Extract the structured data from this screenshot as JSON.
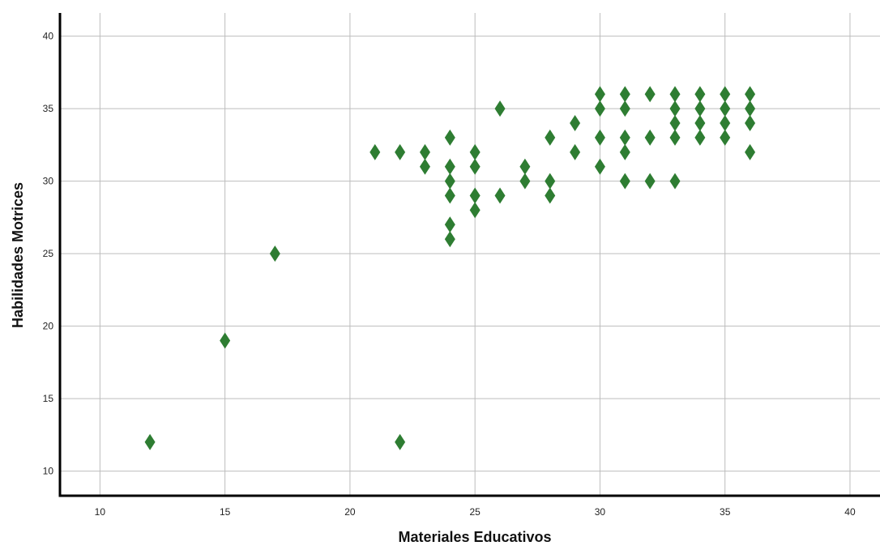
{
  "chart_data": {
    "type": "scatter",
    "title": "",
    "xlabel": "Materiales Educativos",
    "ylabel": "Habilidades Motrices",
    "xlim": [
      8.4,
      41.2
    ],
    "ylim": [
      8.3,
      41.6
    ],
    "xticks": [
      10,
      15,
      20,
      25,
      30,
      35,
      40
    ],
    "yticks": [
      10,
      15,
      20,
      25,
      30,
      35,
      40
    ],
    "grid": true,
    "marker": "diamond",
    "color": "#2e7d32",
    "points": [
      [
        12,
        12
      ],
      [
        15,
        19
      ],
      [
        17,
        25
      ],
      [
        21,
        32
      ],
      [
        22,
        32
      ],
      [
        22,
        12
      ],
      [
        23,
        32
      ],
      [
        23,
        31
      ],
      [
        24,
        33
      ],
      [
        24,
        31
      ],
      [
        24,
        30
      ],
      [
        24,
        29
      ],
      [
        24,
        27
      ],
      [
        24,
        26
      ],
      [
        25,
        32
      ],
      [
        25,
        31
      ],
      [
        25,
        29
      ],
      [
        25,
        28
      ],
      [
        26,
        35
      ],
      [
        26,
        29
      ],
      [
        27,
        31
      ],
      [
        27,
        30
      ],
      [
        28,
        33
      ],
      [
        28,
        30
      ],
      [
        28,
        29
      ],
      [
        29,
        34
      ],
      [
        29,
        32
      ],
      [
        30,
        36
      ],
      [
        30,
        35
      ],
      [
        30,
        33
      ],
      [
        30,
        31
      ],
      [
        31,
        36
      ],
      [
        31,
        35
      ],
      [
        31,
        33
      ],
      [
        31,
        32
      ],
      [
        31,
        30
      ],
      [
        32,
        36
      ],
      [
        32,
        33
      ],
      [
        32,
        30
      ],
      [
        33,
        36
      ],
      [
        33,
        35
      ],
      [
        33,
        34
      ],
      [
        33,
        33
      ],
      [
        33,
        30
      ],
      [
        34,
        36
      ],
      [
        34,
        35
      ],
      [
        34,
        34
      ],
      [
        34,
        33
      ],
      [
        35,
        36
      ],
      [
        35,
        35
      ],
      [
        35,
        34
      ],
      [
        35,
        33
      ],
      [
        36,
        36
      ],
      [
        36,
        35
      ],
      [
        36,
        34
      ],
      [
        36,
        32
      ]
    ]
  }
}
